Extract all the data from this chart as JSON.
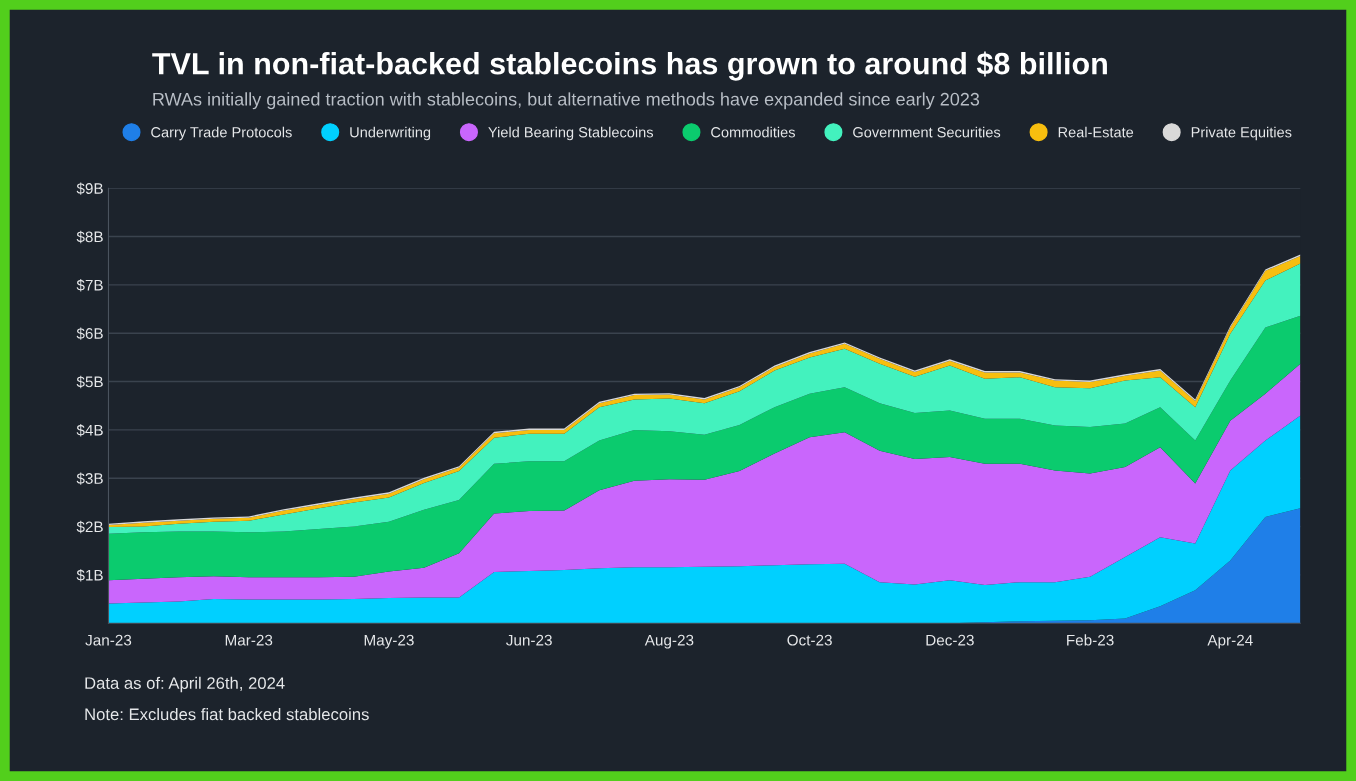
{
  "chart_data": {
    "type": "area",
    "stacked": true,
    "title": "TVL in non-fiat-backed stablecoins has grown to around $8 billion",
    "subtitle": "RWAs initially gained traction with stablecoins, but alternative methods have expanded since early 2023",
    "categories": [
      "Jan-23",
      null,
      null,
      null,
      "Mar-23",
      null,
      null,
      null,
      "May-23",
      null,
      null,
      null,
      "Jun-23",
      null,
      null,
      null,
      "Aug-23",
      null,
      null,
      null,
      "Oct-23",
      null,
      null,
      null,
      "Dec-23",
      null,
      null,
      null,
      "Feb-23",
      null,
      null,
      null,
      "Apr-24",
      null,
      null
    ],
    "series": [
      {
        "name": "Carry Trade Protocols",
        "color": "#1f7fe8",
        "values": [
          0,
          0,
          0,
          0,
          0,
          0,
          0,
          0,
          0,
          0,
          0,
          0,
          0,
          0,
          0,
          0,
          0,
          0,
          0,
          0,
          0,
          0,
          0,
          0,
          0,
          0.02,
          0.04,
          0.05,
          0.06,
          0.1,
          0.35,
          0.68,
          1.3,
          2.2,
          2.38
        ]
      },
      {
        "name": "Underwriting",
        "color": "#00d0ff",
        "values": [
          0.41,
          0.43,
          0.45,
          0.5,
          0.49,
          0.49,
          0.49,
          0.5,
          0.52,
          0.53,
          0.53,
          1.06,
          1.08,
          1.1,
          1.14,
          1.16,
          1.16,
          1.17,
          1.18,
          1.2,
          1.22,
          1.23,
          0.85,
          0.8,
          0.89,
          0.77,
          0.81,
          0.8,
          0.9,
          1.27,
          1.43,
          0.97,
          1.86,
          1.58,
          1.92
        ]
      },
      {
        "name": "Yield Bearing Stablecoins",
        "color": "#c966fc",
        "values": [
          0.48,
          0.49,
          0.5,
          0.47,
          0.46,
          0.46,
          0.46,
          0.46,
          0.55,
          0.62,
          0.92,
          1.21,
          1.24,
          1.23,
          1.61,
          1.79,
          1.82,
          1.8,
          1.97,
          2.31,
          2.63,
          2.72,
          2.72,
          2.6,
          2.55,
          2.51,
          2.45,
          2.31,
          2.14,
          1.86,
          1.86,
          1.24,
          1.03,
          0.97,
          1.07
        ]
      },
      {
        "name": "Commodities",
        "color": "#0bcb6e",
        "values": [
          0.96,
          0.96,
          0.95,
          0.93,
          0.93,
          0.95,
          1.0,
          1.04,
          1.03,
          1.2,
          1.1,
          1.03,
          1.03,
          1.02,
          1.03,
          1.05,
          0.99,
          0.93,
          0.95,
          0.96,
          0.9,
          0.93,
          0.98,
          0.95,
          0.96,
          0.93,
          0.93,
          0.93,
          0.96,
          0.9,
          0.83,
          0.89,
          0.83,
          1.37,
          0.99
        ]
      },
      {
        "name": "Government Securities",
        "color": "#43f2be",
        "values": [
          0.14,
          0.12,
          0.16,
          0.2,
          0.24,
          0.35,
          0.43,
          0.5,
          0.5,
          0.55,
          0.6,
          0.54,
          0.57,
          0.57,
          0.69,
          0.63,
          0.68,
          0.65,
          0.7,
          0.76,
          0.75,
          0.8,
          0.82,
          0.75,
          0.93,
          0.83,
          0.86,
          0.79,
          0.8,
          0.89,
          0.62,
          0.69,
          0.97,
          0.97,
          1.08
        ]
      },
      {
        "name": "Real-Estate",
        "color": "#f7be0f",
        "values": [
          0.04,
          0.08,
          0.06,
          0.06,
          0.06,
          0.08,
          0.07,
          0.07,
          0.08,
          0.08,
          0.07,
          0.09,
          0.08,
          0.08,
          0.08,
          0.09,
          0.08,
          0.08,
          0.08,
          0.07,
          0.08,
          0.1,
          0.1,
          0.1,
          0.1,
          0.13,
          0.1,
          0.14,
          0.13,
          0.1,
          0.14,
          0.13,
          0.13,
          0.2,
          0.16
        ]
      },
      {
        "name": "Private Equities",
        "color": "#d9d9d9",
        "values": [
          0.03,
          0.03,
          0.03,
          0.03,
          0.03,
          0.03,
          0.03,
          0.03,
          0.03,
          0.03,
          0.03,
          0.03,
          0.03,
          0.03,
          0.03,
          0.03,
          0.03,
          0.03,
          0.03,
          0.03,
          0.03,
          0.03,
          0.03,
          0.03,
          0.03,
          0.03,
          0.03,
          0.03,
          0.03,
          0.03,
          0.03,
          0.03,
          0.03,
          0.03,
          0.03
        ]
      }
    ],
    "ylim": [
      0,
      9
    ],
    "yticks": [
      {
        "value": 1,
        "label": "$1B"
      },
      {
        "value": 2,
        "label": "$2B"
      },
      {
        "value": 3,
        "label": "$3B"
      },
      {
        "value": 4,
        "label": "$4B"
      },
      {
        "value": 5,
        "label": "$5B"
      },
      {
        "value": 6,
        "label": "$6B"
      },
      {
        "value": 7,
        "label": "$7B"
      },
      {
        "value": 8,
        "label": "$8B"
      },
      {
        "value": 9,
        "label": "$9B"
      }
    ],
    "grid": "y",
    "legend": "top",
    "annotations": [
      "Data as of: April 26th, 2024",
      "Note: Excludes fiat backed stablecoins"
    ]
  }
}
